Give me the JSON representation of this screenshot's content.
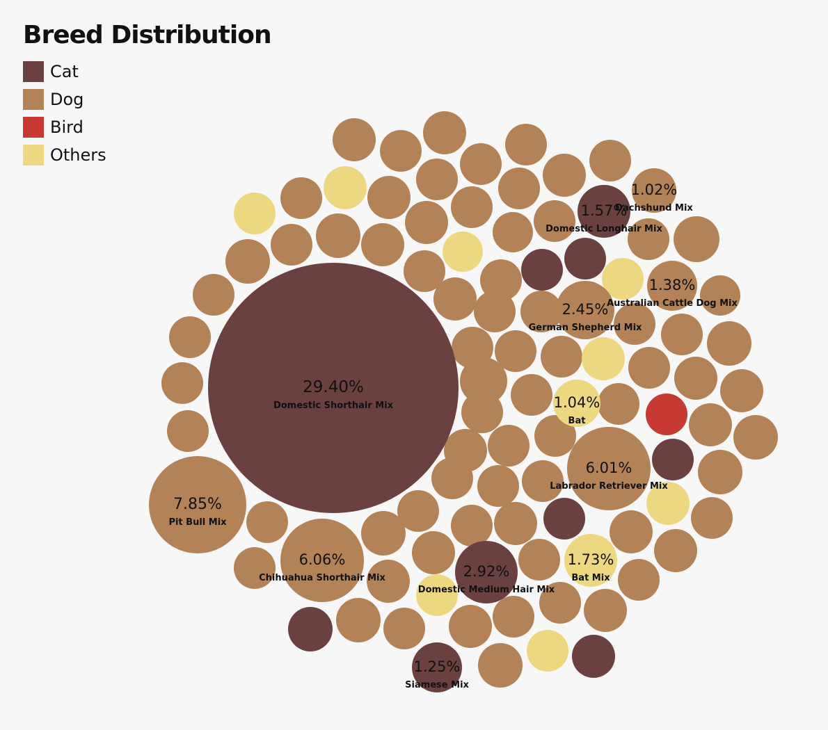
{
  "title": "Breed Distribution",
  "legend": [
    {
      "label": "Cat",
      "color": "#6a4040"
    },
    {
      "label": "Dog",
      "color": "#b38256"
    },
    {
      "label": "Bird",
      "color": "#c73a33"
    },
    {
      "label": "Others",
      "color": "#ecd880"
    }
  ],
  "chart_data": {
    "type": "bubble",
    "title": "Breed Distribution",
    "legend_position": "top-left",
    "groups": [
      "Cat",
      "Dog",
      "Bird",
      "Others"
    ],
    "labeled_breeds": [
      {
        "breed": "Domestic Shorthair Mix",
        "group": "Cat",
        "percent": "29.40%",
        "value": 29.4
      },
      {
        "breed": "Pit Bull Mix",
        "group": "Dog",
        "percent": "7.85%",
        "value": 7.85
      },
      {
        "breed": "Chihuahua Shorthair Mix",
        "group": "Dog",
        "percent": "6.06%",
        "value": 6.06
      },
      {
        "breed": "Labrador Retriever Mix",
        "group": "Dog",
        "percent": "6.01%",
        "value": 6.01
      },
      {
        "breed": "Domestic Medium Hair Mix",
        "group": "Cat",
        "percent": "2.92%",
        "value": 2.92
      },
      {
        "breed": "German Shepherd Mix",
        "group": "Dog",
        "percent": "2.45%",
        "value": 2.45
      },
      {
        "breed": "Bat Mix",
        "group": "Others",
        "percent": "1.73%",
        "value": 1.73
      },
      {
        "breed": "Domestic Longhair Mix",
        "group": "Cat",
        "percent": "1.57%",
        "value": 1.57
      },
      {
        "breed": "Australian Cattle Dog Mix",
        "group": "Dog",
        "percent": "1.38%",
        "value": 1.38
      },
      {
        "breed": "Siamese Mix",
        "group": "Cat",
        "percent": "1.25%",
        "value": 1.25
      },
      {
        "breed": "Bat",
        "group": "Others",
        "percent": "1.04%",
        "value": 1.04
      },
      {
        "breed": "Dachshund Mix",
        "group": "Dog",
        "percent": "1.02%",
        "value": 1.02
      }
    ],
    "unlabeled_bubble_counts": {
      "Cat": 6,
      "Dog": 98,
      "Bird": 1,
      "Others": 7
    }
  }
}
